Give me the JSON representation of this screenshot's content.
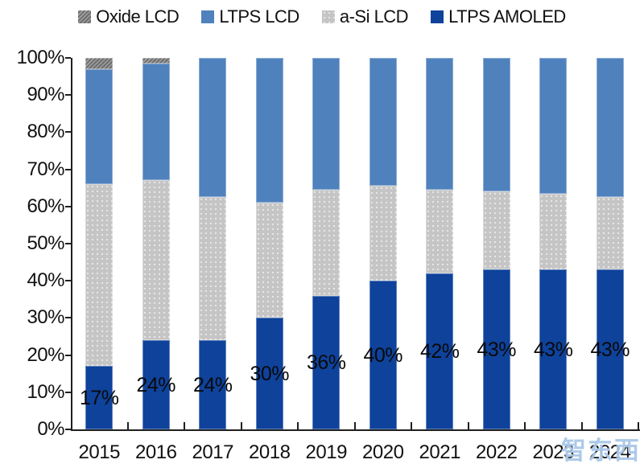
{
  "chart_data": {
    "type": "bar",
    "stacked": true,
    "title": "",
    "xlabel": "",
    "ylabel": "",
    "categories": [
      "2015",
      "2016",
      "2017",
      "2018",
      "2019",
      "2020",
      "2021",
      "2022",
      "2023",
      "2024"
    ],
    "series": [
      {
        "name": "LTPS AMOLED",
        "color": "#0E429B",
        "pattern": "solid",
        "values": [
          17,
          24,
          24,
          30,
          36,
          40,
          42,
          43,
          43,
          43
        ],
        "data_labels": [
          "17%",
          "24%",
          "24%",
          "30%",
          "36%",
          "40%",
          "42%",
          "43%",
          "43%",
          "43%"
        ]
      },
      {
        "name": "a-Si LCD",
        "color": "#C5C5C5",
        "pattern": "dots",
        "values": [
          49,
          43,
          38.5,
          31,
          28.5,
          25.5,
          22.5,
          21,
          20.5,
          19.5
        ],
        "data_labels": null
      },
      {
        "name": "LTPS LCD",
        "color": "#4F81BD",
        "pattern": "solid",
        "values": [
          31,
          31.5,
          37.5,
          39,
          35.5,
          34.5,
          35.5,
          36,
          36.5,
          37.5
        ],
        "data_labels": null
      },
      {
        "name": "Oxide LCD",
        "color": "#7D7D7D",
        "pattern": "hatch",
        "values": [
          3,
          1.5,
          0,
          0,
          0,
          0,
          0,
          0,
          0,
          0
        ],
        "data_labels": null
      }
    ],
    "legend": {
      "position": "top",
      "order": [
        "Oxide LCD",
        "LTPS LCD",
        "a-Si LCD",
        "LTPS AMOLED"
      ]
    },
    "y_axis": {
      "min": 0,
      "max": 100,
      "grid": false,
      "ticks": [
        "100%",
        "90%",
        "80%",
        "70%",
        "60%",
        "50%",
        "40%",
        "30%",
        "20%",
        "10%",
        "0%"
      ]
    },
    "x_axis": {
      "labels": [
        "2015",
        "2016",
        "2017",
        "2018",
        "2019",
        "2020",
        "2021",
        "2022",
        "2023",
        "2024"
      ]
    },
    "axis_color": "#1F1F1F",
    "text_color": "#111111"
  },
  "watermark": {
    "text": "智东西"
  }
}
